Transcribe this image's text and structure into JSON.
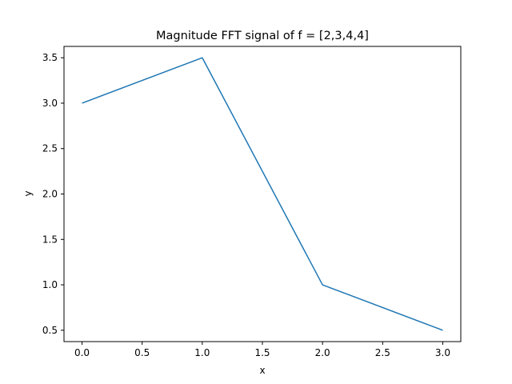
{
  "chart_data": {
    "type": "line",
    "title": "Magnitude FFT signal of f = [2,3,4,4]",
    "xlabel": "x",
    "ylabel": "y",
    "x": [
      0,
      1,
      2,
      3
    ],
    "series": [
      {
        "values": [
          3.0,
          3.5,
          1.0,
          0.5
        ],
        "color": "#1f77b4"
      }
    ],
    "xlim": [
      -0.15,
      3.15
    ],
    "ylim": [
      0.375,
      3.625
    ],
    "xticks": [
      "0.0",
      "0.5",
      "1.0",
      "1.5",
      "2.0",
      "2.5",
      "3.0"
    ],
    "yticks": [
      "0.5",
      "1.0",
      "1.5",
      "2.0",
      "2.5",
      "3.0",
      "3.5"
    ],
    "grid": false,
    "legend": false
  }
}
